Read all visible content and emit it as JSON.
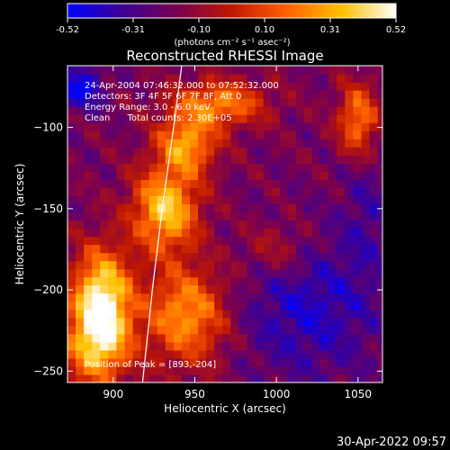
{
  "chart_data": {
    "type": "heatmap",
    "title": "Reconstructed RHESSI Image",
    "xlabel": "Heliocentric X (arcsec)",
    "ylabel": "Heliocentric Y (arcsec)",
    "xlim": [
      872,
      1065
    ],
    "ylim": [
      -257,
      -62
    ],
    "x_ticks": [
      900,
      950,
      1000,
      1050
    ],
    "y_ticks": [
      -100,
      -150,
      -200,
      -250
    ],
    "colorbar": {
      "range": [
        -0.52,
        0.52
      ],
      "ticks": [
        "-0.52",
        "-0.31",
        "-0.10",
        "0.10",
        "0.31",
        "0.52"
      ],
      "unit_label": "(photons cm⁻² s⁻¹ asec⁻²)",
      "colors": [
        "#0000ff",
        "#3c0096",
        "#7a0050",
        "#c01800",
        "#ff6000",
        "#ffc000",
        "#ffffff"
      ]
    },
    "annotations": [
      "24-Apr-2004 07:46:32.000 to 07:52:32.000",
      "Detectors: 3F 4F 5F 6F 7F 8F, Att 0",
      "Energy Range: 3.0 - 6.0 keV",
      "Clean      Total counts: 2.30E+05"
    ],
    "peak_label": "Position of Peak = [893,-204]",
    "timestamp": "30-Apr-2022 09:57",
    "limb_curve": [
      [
        942,
        -62
      ],
      [
        937,
        -100
      ],
      [
        930,
        -150
      ],
      [
        924,
        -200
      ],
      [
        918,
        -257
      ]
    ],
    "grid_size": [
      30,
      30
    ],
    "intensity_grid": [
      "aaaaabbbccccbbccbaaaaabaaaaaab",
      "aaaaaaaaaaabaaaaaaaaababbbbbbb",
      "aaaaaaabbbbbbaaaaaaabbbbbbbbbb",
      "aaaaabbbbbbbbbbaaaabbbcbbbbbbb",
      "aaaabbbbbbbbbbbbbbbbbcdcbbbbbb",
      "ccbbbbbbbbbbbbbbbbbbbbbbbbbbbb",
      "bccbbbbbbbbbbbbbbbbbbbbbbbbbbb",
      "aabcbbbbbbbbbbbbbbbbbbbbbbbbbb",
      "bbbbbbbbbbbbbbbbbbbbbbbbbbbbbb",
      "bbbbbbbbbbbbbbbbbbbbbbbbbbbbbb",
      "bbbbbbbbbbbbbbbbbbbbbbbbbbbbbb",
      "bbbbbbbbbbbbbbbbbbbbbbbbbbbbbb",
      "bbbbbbbbbbbbbbbbbbbbbbbbbbbbbb",
      "bbbbbbbbbbbbbbbbbbbbbbbbbbbbbb",
      "bbbbbbbbbbbbbbbbbbbbbbbbbbbbbb",
      "bbbbbbbbbbbbbbbbbbbbbbbbbbbbbb",
      "bbbbbbbbbbbbbbbbbbbbbbbbbbbbbb",
      "bbbbbbbbbbbbbbbbbbbbbbbbbbbbbb",
      "bbbbbbbbbbbbbbbbbbbbbbbbbbbbbb",
      "bbbbbbbbbbbbbbbbbbbbbbbbbbbbbb",
      "bbbbbbbbbbbbbbbbbbbbbbbbbbbbbb",
      "bbbbbbbbbbbbbbbbbbbbbbbbbbbbbb",
      "bbbbbbbbbbbbbbbbbbbbbbbbbbbbbb",
      "bbbbbbbbbbbbbbbbbbbbbbbbbbbbbb",
      "bbbbbbbbbbbbbbbbbbbbbbbbbbbbbb",
      "bbbbbbbbbbbbbbbbbbbbbbbbbbbbbb",
      "bbbbbbbbbbbbbbbbbbbbbbbbbbbbbb",
      "bbbbbbbbbbbbbbbbbbbbbbbbbbbbbb",
      "bbbbbbbbbbbbbbbbbbbbbbbbbbbbbb",
      "bbbbbbbbbbbbbbbbbbbbbbbbbbbbbb"
    ]
  }
}
